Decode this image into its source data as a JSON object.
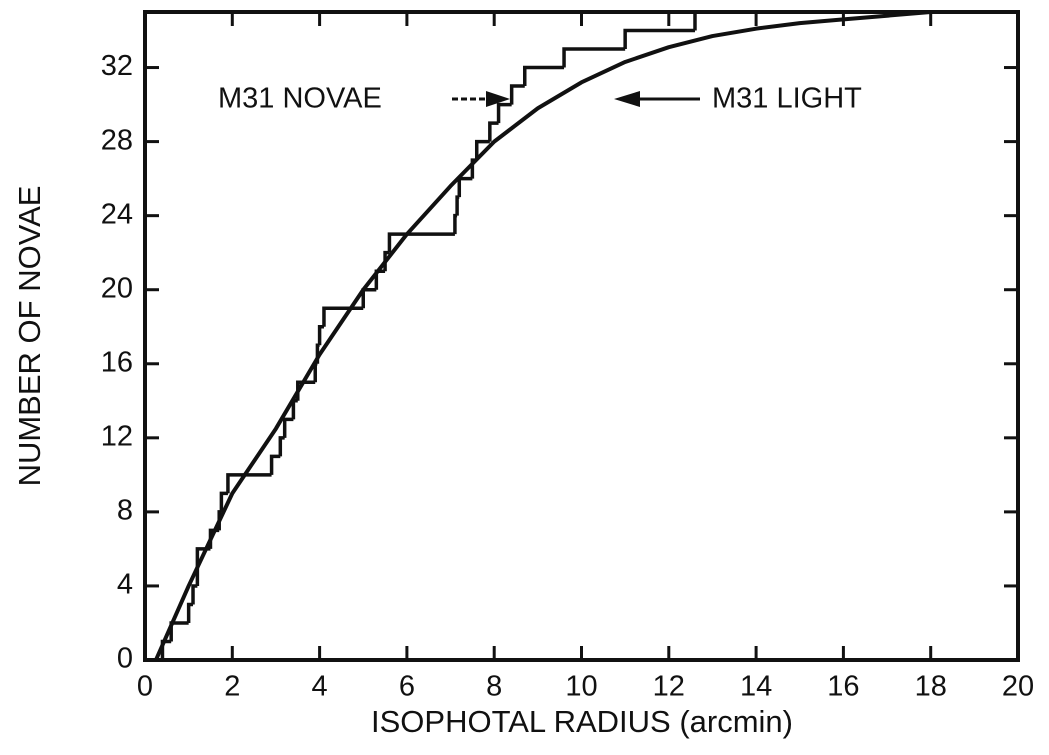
{
  "chart_data": {
    "type": "line",
    "xlabel": "ISOPHOTAL RADIUS (arcmin)",
    "ylabel": "NUMBER OF NOVAE",
    "xlim": [
      0,
      20
    ],
    "xticks": [
      0,
      2,
      4,
      6,
      8,
      10,
      12,
      14,
      16,
      18,
      20
    ],
    "ylim": [
      0,
      35
    ],
    "yticks": [
      0,
      4,
      8,
      12,
      16,
      20,
      24,
      28,
      32
    ],
    "annotations": [
      "M31 NOVAE",
      "M31 LIGHT"
    ],
    "series": [
      {
        "name": "M31 NOVAE",
        "color": "#111111",
        "step": true,
        "x": [
          0.3,
          0.4,
          0.6,
          1.0,
          1.1,
          1.2,
          1.5,
          1.7,
          1.75,
          1.9,
          2.9,
          3.1,
          3.2,
          3.4,
          3.5,
          3.9,
          3.95,
          4.0,
          4.1,
          5.0,
          5.3,
          5.5,
          5.6,
          7.1,
          7.15,
          7.2,
          7.5,
          7.6,
          7.9,
          8.1,
          8.4,
          8.7,
          9.6,
          11.0,
          12.6
        ],
        "values": [
          0,
          1,
          2,
          3,
          4,
          6,
          7,
          8,
          9,
          10,
          11,
          12,
          13,
          14,
          15,
          16,
          17,
          18,
          19,
          20,
          21,
          22,
          23,
          24,
          25,
          26,
          27,
          28,
          29,
          30,
          31,
          32,
          33,
          34,
          35
        ]
      },
      {
        "name": "M31 LIGHT",
        "color": "#111111",
        "step": false,
        "x": [
          0.25,
          1,
          2,
          3,
          4,
          5,
          6,
          7,
          8,
          9,
          10,
          11,
          12,
          13,
          14,
          15,
          16,
          17,
          18
        ],
        "values": [
          0,
          4,
          9,
          12.5,
          16.5,
          20,
          23,
          25.6,
          28,
          29.8,
          31.2,
          32.3,
          33.1,
          33.7,
          34.1,
          34.4,
          34.6,
          34.8,
          35
        ]
      }
    ]
  }
}
